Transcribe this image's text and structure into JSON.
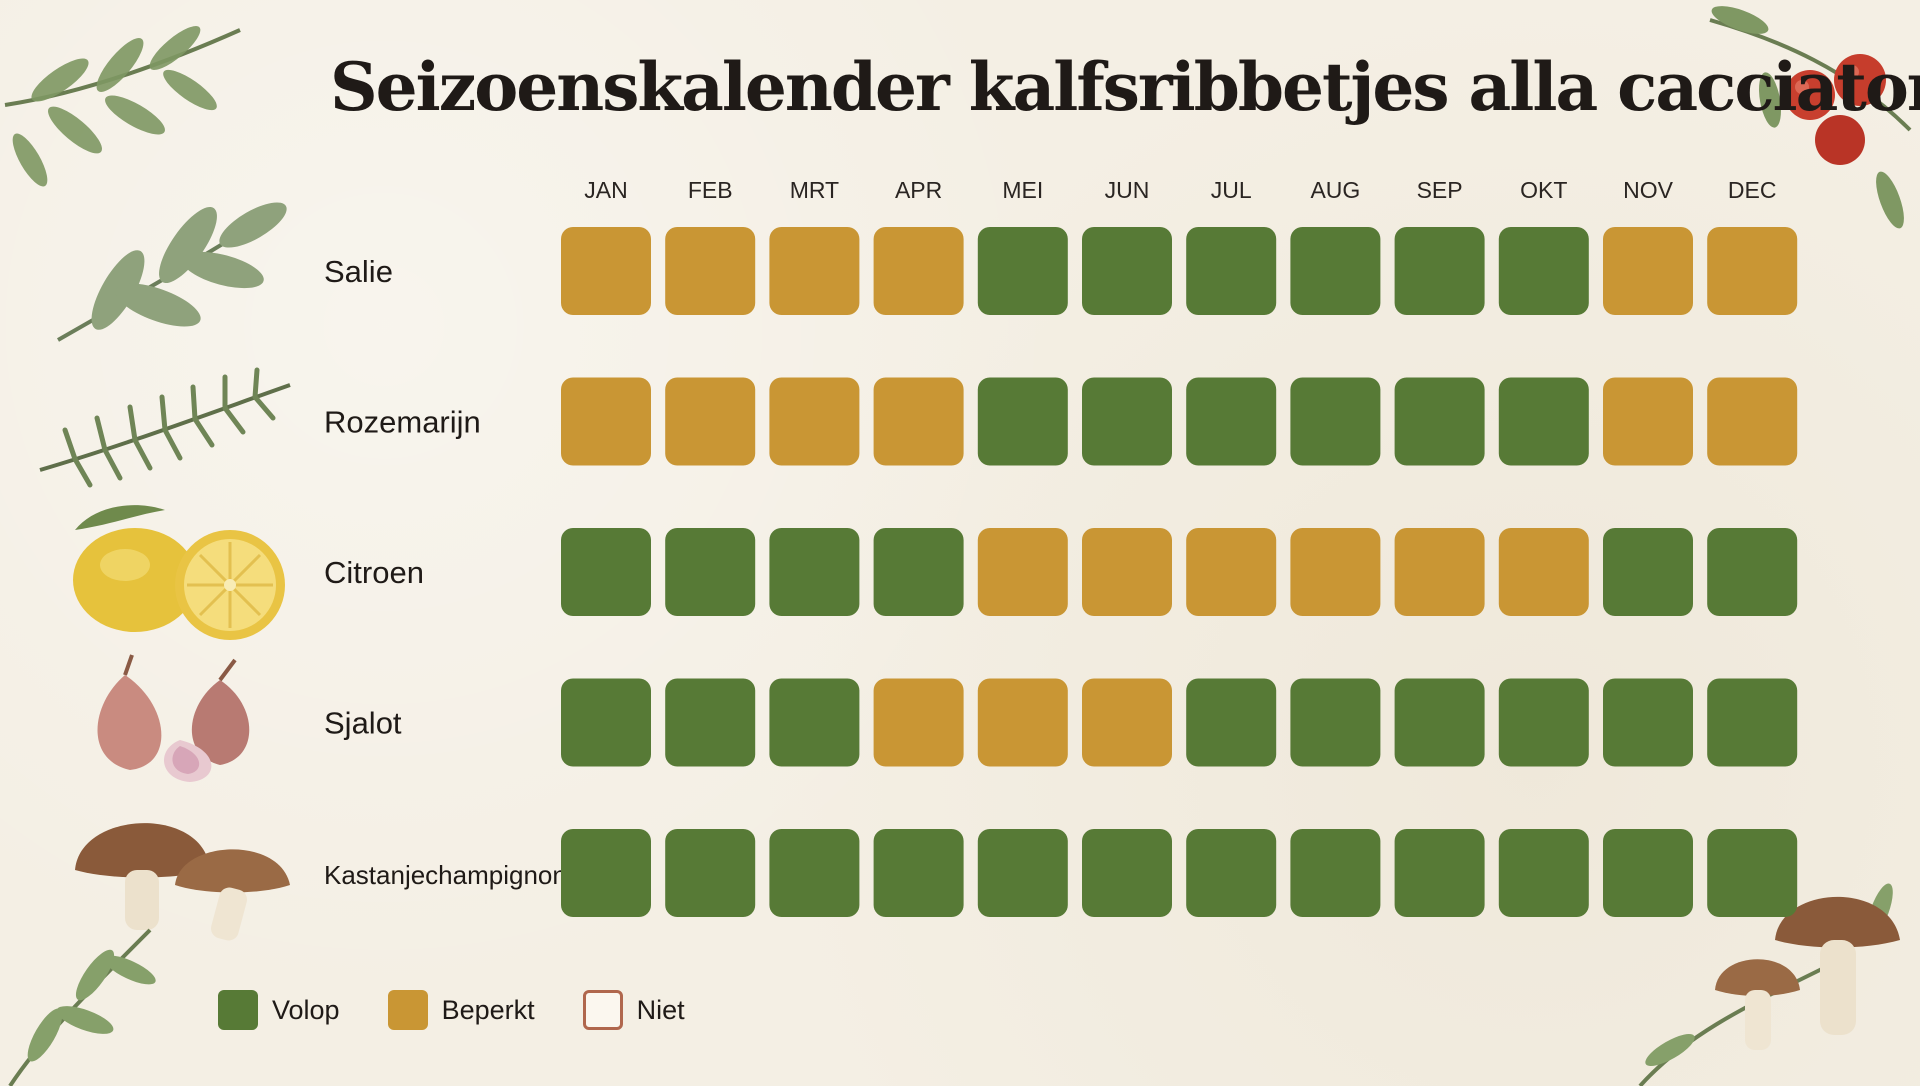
{
  "title": "Seizoenskalender kalfsribbetjes alla cacciatora",
  "colors": {
    "volop": "#577a36",
    "beperkt": "#c99634",
    "niet_border": "#b0674d",
    "background": "#f4efe4"
  },
  "chart_data": {
    "type": "heatmap",
    "title": "Seizoenskalender kalfsribbetjes alla cacciatora",
    "categories": [
      "JAN",
      "FEB",
      "MRT",
      "APR",
      "MEI",
      "JUN",
      "JUL",
      "AUG",
      "SEP",
      "OKT",
      "NOV",
      "DEC"
    ],
    "rows": [
      {
        "name": "Salie",
        "icon": "sage-icon",
        "values": [
          "Beperkt",
          "Beperkt",
          "Beperkt",
          "Beperkt",
          "Volop",
          "Volop",
          "Volop",
          "Volop",
          "Volop",
          "Volop",
          "Beperkt",
          "Beperkt"
        ]
      },
      {
        "name": "Rozemarijn",
        "icon": "rosemary-icon",
        "values": [
          "Beperkt",
          "Beperkt",
          "Beperkt",
          "Beperkt",
          "Volop",
          "Volop",
          "Volop",
          "Volop",
          "Volop",
          "Volop",
          "Beperkt",
          "Beperkt"
        ]
      },
      {
        "name": "Citroen",
        "icon": "lemon-icon",
        "values": [
          "Volop",
          "Volop",
          "Volop",
          "Volop",
          "Beperkt",
          "Beperkt",
          "Beperkt",
          "Beperkt",
          "Beperkt",
          "Beperkt",
          "Volop",
          "Volop"
        ]
      },
      {
        "name": "Sjalot",
        "icon": "shallot-icon",
        "values": [
          "Volop",
          "Volop",
          "Volop",
          "Beperkt",
          "Beperkt",
          "Beperkt",
          "Volop",
          "Volop",
          "Volop",
          "Volop",
          "Volop",
          "Volop"
        ]
      },
      {
        "name": "Kastanjechampignons",
        "icon": "mushroom-icon",
        "values": [
          "Volop",
          "Volop",
          "Volop",
          "Volop",
          "Volop",
          "Volop",
          "Volop",
          "Volop",
          "Volop",
          "Volop",
          "Volop",
          "Volop"
        ]
      }
    ],
    "legend": [
      {
        "label": "Volop",
        "color": "#577a36"
      },
      {
        "label": "Beperkt",
        "color": "#c99634"
      },
      {
        "label": "Niet",
        "color": "none",
        "border": "#b0674d"
      }
    ],
    "legend_position": "bottom-left",
    "grid": false
  }
}
